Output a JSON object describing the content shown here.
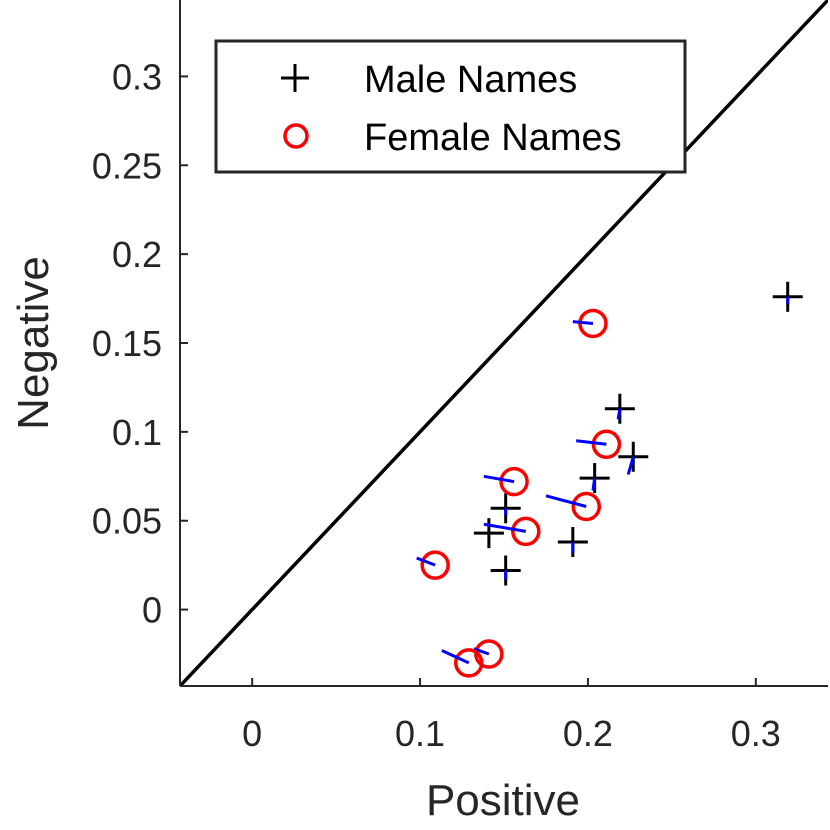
{
  "chart_data": {
    "type": "scatter",
    "xlabel": "Positive",
    "ylabel": "Negative",
    "xlim": [
      -0.043,
      0.343
    ],
    "ylim": [
      -0.043,
      0.343
    ],
    "xticks": [
      0,
      0.1,
      0.2,
      0.3
    ],
    "xtick_labels": [
      "0",
      "0.1",
      "0.2",
      "0.3"
    ],
    "yticks": [
      0,
      0.05,
      0.1,
      0.15,
      0.2,
      0.25,
      0.3
    ],
    "ytick_labels": [
      "0",
      "0.05",
      "0.1",
      "0.15",
      "0.2",
      "0.25",
      "0.3"
    ],
    "diagonal": true,
    "legend": {
      "location": "top-left",
      "entries": [
        "Male Names",
        "Female Names"
      ]
    },
    "colors": {
      "male": "#000000",
      "female": "#ff0000",
      "segment": "#0000ff",
      "axis": "#262626"
    },
    "series": [
      {
        "name": "Male Names",
        "marker": "plus",
        "points": [
          {
            "x": 0.319,
            "y": 0.176,
            "dx": 0.0,
            "dy": -0.004
          },
          {
            "x": 0.219,
            "y": 0.113,
            "dx": -0.001,
            "dy": -0.006
          },
          {
            "x": 0.227,
            "y": 0.086,
            "dx": -0.003,
            "dy": -0.01
          },
          {
            "x": 0.204,
            "y": 0.074,
            "dx": -0.001,
            "dy": -0.007
          },
          {
            "x": 0.151,
            "y": 0.057,
            "dx": 0.0,
            "dy": -0.004
          },
          {
            "x": 0.141,
            "y": 0.043,
            "dx": 0.0,
            "dy": 0.0
          },
          {
            "x": 0.191,
            "y": 0.038,
            "dx": 0.0,
            "dy": -0.006
          },
          {
            "x": 0.151,
            "y": 0.022,
            "dx": 0.0,
            "dy": -0.005
          }
        ]
      },
      {
        "name": "Female Names",
        "marker": "circle",
        "points": [
          {
            "x": 0.203,
            "y": 0.161,
            "dx": -0.012,
            "dy": 0.001
          },
          {
            "x": 0.211,
            "y": 0.093,
            "dx": -0.018,
            "dy": 0.002
          },
          {
            "x": 0.156,
            "y": 0.072,
            "dx": -0.018,
            "dy": 0.003
          },
          {
            "x": 0.199,
            "y": 0.058,
            "dx": -0.024,
            "dy": 0.006
          },
          {
            "x": 0.163,
            "y": 0.044,
            "dx": -0.025,
            "dy": 0.004
          },
          {
            "x": 0.109,
            "y": 0.025,
            "dx": -0.011,
            "dy": 0.004
          },
          {
            "x": 0.141,
            "y": -0.025,
            "dx": -0.009,
            "dy": 0.003
          },
          {
            "x": 0.129,
            "y": -0.03,
            "dx": -0.016,
            "dy": 0.007
          }
        ]
      }
    ]
  }
}
